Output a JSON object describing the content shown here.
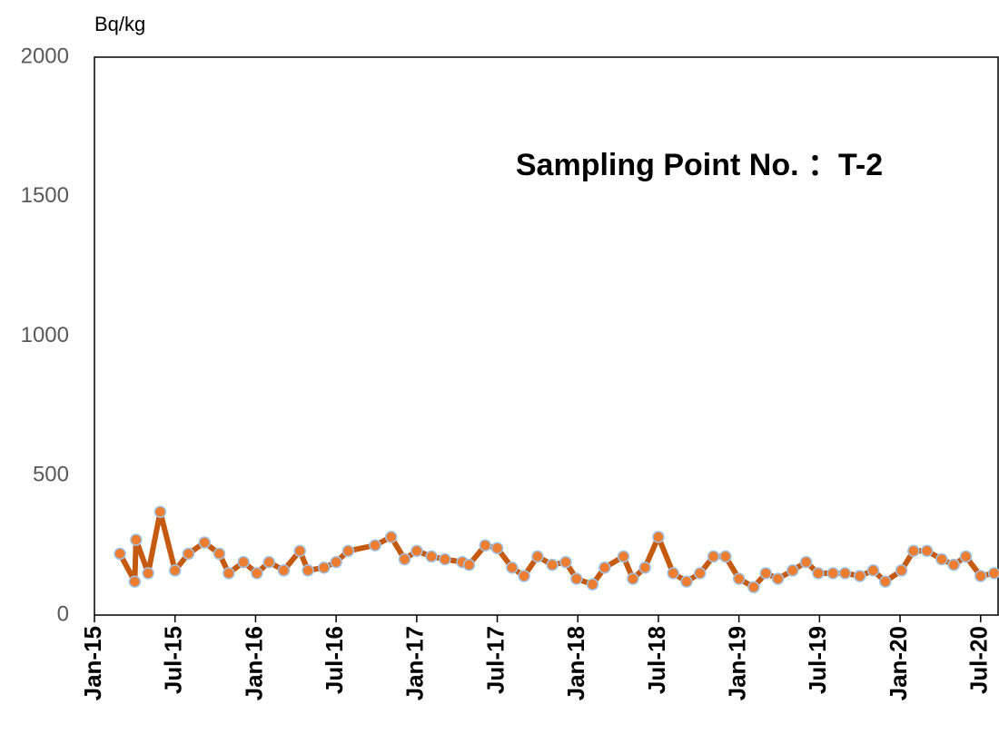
{
  "chart_data": {
    "type": "line",
    "y_unit": "Bq/kg",
    "annotation": "Sampling Point No. ：T-2",
    "x": [
      1.9,
      3.0,
      3.1,
      4.0,
      4.9,
      6.0,
      7.0,
      8.2,
      9.3,
      10.0,
      11.1,
      12.1,
      13.0,
      14.1,
      15.3,
      15.9,
      17.1,
      18.0,
      18.9,
      20.9,
      22.1,
      23.1,
      24.0,
      25.1,
      26.1,
      27.4,
      27.9,
      29.1,
      30.0,
      31.1,
      32.0,
      33.0,
      34.1,
      35.1,
      35.9,
      37.1,
      38.0,
      39.4,
      40.1,
      41.0,
      42.0,
      43.1,
      44.1,
      45.1,
      46.1,
      47.0,
      48.0,
      49.1,
      50.0,
      50.9,
      52.0,
      53.0,
      53.9,
      55.0,
      55.9,
      57.0,
      58.0,
      58.9,
      60.1,
      61.0,
      62.0,
      63.1,
      64.0,
      64.9,
      66.0,
      67.0
    ],
    "values": [
      220,
      120,
      270,
      150,
      370,
      160,
      220,
      260,
      220,
      150,
      190,
      150,
      190,
      160,
      230,
      160,
      170,
      190,
      230,
      250,
      280,
      200,
      230,
      210,
      200,
      190,
      180,
      250,
      240,
      170,
      140,
      210,
      180,
      190,
      130,
      110,
      170,
      210,
      130,
      170,
      280,
      150,
      120,
      150,
      210,
      210,
      130,
      100,
      150,
      130,
      160,
      190,
      150,
      150,
      150,
      140,
      160,
      120,
      160,
      230,
      230,
      200,
      180,
      210,
      140,
      150
    ],
    "line_color": "#c55a11",
    "marker_color": "#ed7d31",
    "marker_edge_color": "#9dc3e6",
    "xlim": [
      0,
      67.3
    ],
    "xticks": [
      {
        "value": 0,
        "label": "Jan-15"
      },
      {
        "value": 6,
        "label": "Jul-15"
      },
      {
        "value": 12,
        "label": "Jan-16"
      },
      {
        "value": 18,
        "label": "Jul-16"
      },
      {
        "value": 24,
        "label": "Jan-17"
      },
      {
        "value": 30,
        "label": "Jul-17"
      },
      {
        "value": 36,
        "label": "Jan-18"
      },
      {
        "value": 42,
        "label": "Jul-18"
      },
      {
        "value": 48,
        "label": "Jan-19"
      },
      {
        "value": 54,
        "label": "Jul-19"
      },
      {
        "value": 60,
        "label": "Jan-20"
      },
      {
        "value": 66,
        "label": "Jul-20"
      }
    ],
    "ylim": [
      0,
      2000
    ],
    "yticks": [
      0,
      500,
      1000,
      1500,
      2000
    ],
    "grid": false
  }
}
